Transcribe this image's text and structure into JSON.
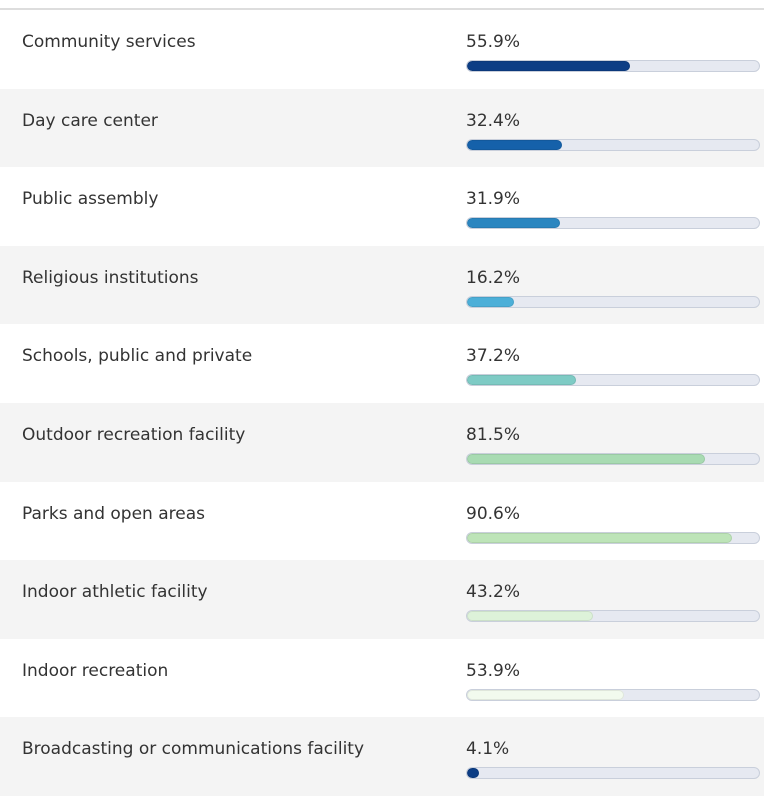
{
  "xlim": [
    0,
    100
  ],
  "rows": [
    {
      "label": "Community services",
      "value": 55.9,
      "value_label": "55.9%",
      "color": "#0c3d85"
    },
    {
      "label": "Day care center",
      "value": 32.4,
      "value_label": "32.4%",
      "color": "#1561aa"
    },
    {
      "label": "Public assembly",
      "value": 31.9,
      "value_label": "31.9%",
      "color": "#2b86c0"
    },
    {
      "label": "Religious institutions",
      "value": 16.2,
      "value_label": "16.2%",
      "color": "#4cafd8"
    },
    {
      "label": "Schools, public and private",
      "value": 37.2,
      "value_label": "37.2%",
      "color": "#7ecbc5"
    },
    {
      "label": "Outdoor recreation facility",
      "value": 81.5,
      "value_label": "81.5%",
      "color": "#a8dbb2"
    },
    {
      "label": "Parks and open areas",
      "value": 90.6,
      "value_label": "90.6%",
      "color": "#bde4b8"
    },
    {
      "label": "Indoor athletic facility",
      "value": 43.2,
      "value_label": "43.2%",
      "color": "#ddf2d9"
    },
    {
      "label": "Indoor recreation",
      "value": 53.9,
      "value_label": "53.9%",
      "color": "#f2faee"
    },
    {
      "label": "Broadcasting or communications facility",
      "value": 4.1,
      "value_label": "4.1%",
      "color": "#0c3d85"
    }
  ]
}
